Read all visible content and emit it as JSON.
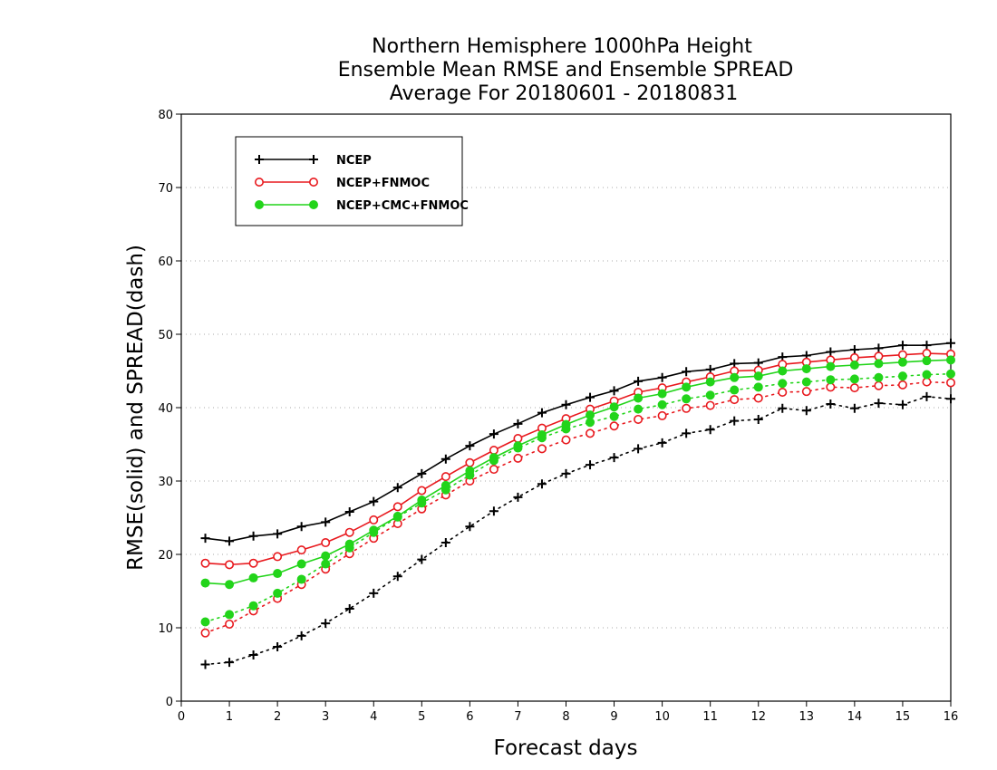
{
  "chart_data": {
    "type": "line",
    "title": "Northern Hemisphere 1000hPa Height",
    "subtitle": "Ensemble Mean RMSE and Ensemble SPREAD",
    "subtitle2": "Average For 20180601 - 20180831",
    "xlabel": "Forecast days",
    "ylabel": "RMSE(solid) and SPREAD(dash)",
    "xlim": [
      0,
      16
    ],
    "ylim": [
      0,
      80
    ],
    "xticks": [
      "0",
      "1",
      "2",
      "3",
      "4",
      "5",
      "6",
      "7",
      "8",
      "9",
      "10",
      "11",
      "12",
      "13",
      "14",
      "15",
      "16"
    ],
    "yticks": [
      "0",
      "10",
      "20",
      "30",
      "40",
      "50",
      "60",
      "70",
      "80"
    ],
    "grid": true,
    "legend_position": "top-left",
    "x": [
      0.5,
      1,
      1.5,
      2,
      2.5,
      3,
      3.5,
      4,
      4.5,
      5,
      5.5,
      6,
      6.5,
      7,
      7.5,
      8,
      8.5,
      9,
      9.5,
      10,
      10.5,
      11,
      11.5,
      12,
      12.5,
      13,
      13.5,
      14,
      14.5,
      15,
      15.5,
      16
    ],
    "series": [
      {
        "name": "NCEP",
        "color": "#000000",
        "marker": "plus",
        "rmse": [
          22.2,
          21.8,
          22.5,
          22.8,
          23.8,
          24.4,
          25.8,
          27.2,
          29.1,
          31.0,
          33.0,
          34.8,
          36.4,
          37.8,
          39.3,
          40.4,
          41.4,
          42.3,
          43.6,
          44.1,
          44.9,
          45.2,
          46.0,
          46.1,
          46.9,
          47.1,
          47.6,
          47.9,
          48.1,
          48.5,
          48.5,
          48.8
        ],
        "spread": [
          5.0,
          5.3,
          6.3,
          7.4,
          8.9,
          10.6,
          12.6,
          14.7,
          17.0,
          19.3,
          21.6,
          23.8,
          25.9,
          27.8,
          29.6,
          31.0,
          32.2,
          33.2,
          34.4,
          35.2,
          36.5,
          37.0,
          38.2,
          38.4,
          39.9,
          39.6,
          40.5,
          39.9,
          40.6,
          40.4,
          41.5,
          41.2
        ]
      },
      {
        "name": "NCEP+FNMOC",
        "color": "#e8191e",
        "marker": "open-circle",
        "rmse": [
          18.8,
          18.6,
          18.8,
          19.7,
          20.6,
          21.6,
          23.0,
          24.7,
          26.5,
          28.7,
          30.6,
          32.5,
          34.2,
          35.8,
          37.2,
          38.5,
          39.8,
          40.9,
          42.1,
          42.7,
          43.5,
          44.2,
          45.0,
          45.1,
          45.9,
          46.2,
          46.5,
          46.8,
          47.0,
          47.2,
          47.4,
          47.3
        ],
        "spread": [
          9.3,
          10.5,
          12.3,
          14.0,
          15.9,
          18.0,
          20.1,
          22.2,
          24.2,
          26.2,
          28.1,
          30.0,
          31.6,
          33.1,
          34.4,
          35.6,
          36.5,
          37.5,
          38.4,
          38.9,
          39.9,
          40.3,
          41.1,
          41.3,
          42.1,
          42.2,
          42.8,
          42.7,
          43.0,
          43.1,
          43.5,
          43.4
        ]
      },
      {
        "name": "NCEP+CMC+FNMOC",
        "color": "#22d41a",
        "marker": "filled-circle",
        "rmse": [
          16.1,
          15.9,
          16.8,
          17.4,
          18.7,
          19.8,
          21.4,
          23.3,
          25.2,
          27.4,
          29.4,
          31.4,
          33.2,
          34.8,
          36.3,
          37.7,
          39.0,
          40.1,
          41.3,
          41.9,
          42.8,
          43.5,
          44.1,
          44.3,
          45.0,
          45.3,
          45.6,
          45.8,
          46.0,
          46.2,
          46.4,
          46.5
        ],
        "spread": [
          10.8,
          11.8,
          13.0,
          14.7,
          16.6,
          18.7,
          20.9,
          23.0,
          25.1,
          27.0,
          28.8,
          30.8,
          32.8,
          34.5,
          35.9,
          37.1,
          38.0,
          38.8,
          39.8,
          40.4,
          41.2,
          41.7,
          42.4,
          42.8,
          43.3,
          43.5,
          43.8,
          43.9,
          44.1,
          44.3,
          44.5,
          44.6
        ]
      }
    ]
  }
}
